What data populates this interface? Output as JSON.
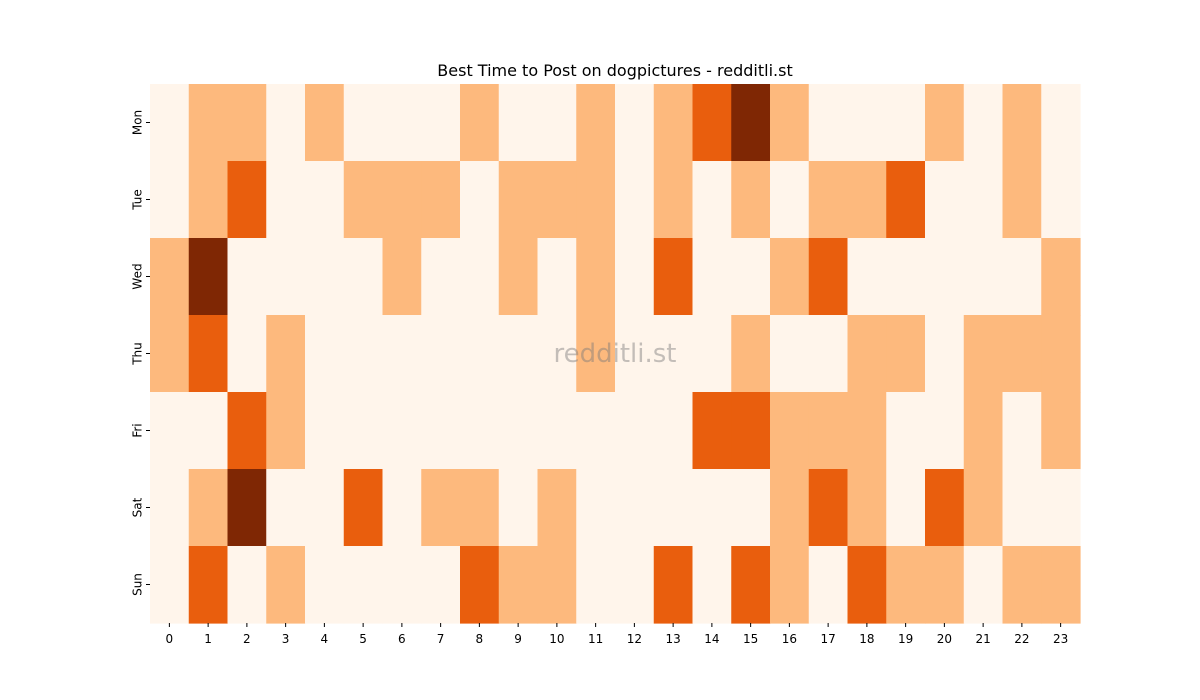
{
  "chart_data": {
    "type": "heatmap",
    "title": "Best Time to Post on dogpictures - redditli.st",
    "watermark": "redditli.st",
    "x_categories": [
      "0",
      "1",
      "2",
      "3",
      "4",
      "5",
      "6",
      "7",
      "8",
      "9",
      "10",
      "11",
      "12",
      "13",
      "14",
      "15",
      "16",
      "17",
      "18",
      "19",
      "20",
      "21",
      "22",
      "23"
    ],
    "y_categories": [
      "Mon",
      "Tue",
      "Wed",
      "Thu",
      "Fri",
      "Sat",
      "Sun"
    ],
    "color_scale": {
      "name": "Oranges",
      "levels": [
        "#fff5eb",
        "#fdb97d",
        "#e95e0d",
        "#7f2704"
      ]
    },
    "values": [
      [
        0,
        1,
        1,
        0,
        1,
        0,
        0,
        0,
        1,
        0,
        0,
        1,
        0,
        1,
        2,
        3,
        1,
        0,
        0,
        0,
        1,
        0,
        1,
        0
      ],
      [
        0,
        1,
        2,
        0,
        0,
        1,
        1,
        1,
        0,
        1,
        1,
        1,
        0,
        1,
        0,
        1,
        0,
        1,
        1,
        2,
        0,
        0,
        1,
        0
      ],
      [
        1,
        3,
        0,
        0,
        0,
        0,
        1,
        0,
        0,
        1,
        0,
        1,
        0,
        2,
        0,
        0,
        1,
        2,
        0,
        0,
        0,
        0,
        0,
        1
      ],
      [
        1,
        2,
        0,
        1,
        0,
        0,
        0,
        0,
        0,
        0,
        0,
        1,
        0,
        0,
        0,
        1,
        0,
        0,
        1,
        1,
        0,
        1,
        1,
        1
      ],
      [
        0,
        0,
        2,
        1,
        0,
        0,
        0,
        0,
        0,
        0,
        0,
        0,
        0,
        0,
        2,
        2,
        1,
        1,
        1,
        0,
        0,
        1,
        0,
        1
      ],
      [
        0,
        1,
        3,
        0,
        0,
        2,
        0,
        1,
        1,
        0,
        1,
        0,
        0,
        0,
        0,
        0,
        1,
        2,
        1,
        0,
        2,
        1,
        0,
        0
      ],
      [
        0,
        2,
        0,
        1,
        0,
        0,
        0,
        0,
        2,
        1,
        1,
        0,
        0,
        2,
        0,
        2,
        1,
        0,
        2,
        1,
        1,
        0,
        1,
        1
      ]
    ],
    "legend": "none",
    "grid": false
  }
}
